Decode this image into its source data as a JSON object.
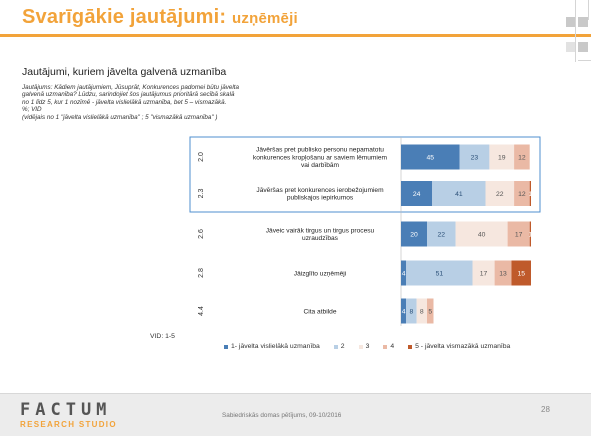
{
  "header": {
    "title_main": "Svarīgākie jautājumi:",
    "title_sub": "uzņēmēji"
  },
  "subtitle": "Jautājumi, kuriem jāvelta galvenā uzmanība",
  "question_lines": [
    "Jautājums: Kādiem jautājumiem, Jūsuprāt, Konkurences padomei būtu jāvelta",
    "galvenā uzmanība? Lūdzu, sarindojiet šos jautājumus prioritārā secībā skalā",
    "no 1 līdz 5, kur 1 nozīmē - jāvelta vislielākā uzmanība, bet 5 – vismazākā.",
    "%; VID",
    "(vidējais no 1 \"jāvelta vislielākā uzmanība\" ; 5 \"vismazākā uzmanība\" )"
  ],
  "vid_label": "VID: 1-5",
  "footer": {
    "logo_top": "FACTUM",
    "logo_bottom": "RESEARCH STUDIO",
    "source": "Sabiedriskās domas pētījums, 09-10/2016",
    "page_number": "28"
  },
  "colors": {
    "c1": "#4a7eb6",
    "c2": "#b8cfe5",
    "c3": "#f6e7df",
    "c4": "#eab9a5",
    "c5": "#bf5a2b",
    "title": "#f2a33a",
    "highlight_border": "#4f8fcf"
  },
  "chart_data": {
    "type": "bar",
    "orientation": "horizontal",
    "stacked": true,
    "categories": [
      [
        "Jāvēršas pret publisko personu nepamatotu",
        "konkurences kropļošanu ar saviem lēmumiem",
        "vai darbībām"
      ],
      [
        "Jāvēršas pret konkurences ierobežojumiem",
        "publiskajos iepirkumos"
      ],
      [
        "Jāveic vairāk tirgus un tirgus procesu",
        "uzraudzības"
      ],
      [
        "Jāizglīto uzņēmēji"
      ],
      [
        "Cita atbilde"
      ]
    ],
    "means": [
      "2.0",
      "2.3",
      "2.6",
      "2.8",
      "4.4"
    ],
    "series": [
      {
        "name": "1- jāvelta vislielākā uzmanība",
        "values": [
          45,
          24,
          20,
          4,
          4
        ]
      },
      {
        "name": "2",
        "values": [
          23,
          41,
          22,
          51,
          8
        ]
      },
      {
        "name": "3",
        "values": [
          19,
          22,
          40,
          17,
          8
        ]
      },
      {
        "name": "4",
        "values": [
          12,
          12,
          17,
          13,
          5
        ]
      },
      {
        "name": "5 - jāvelta vismazākā uzmanība",
        "values": [
          0,
          1,
          1,
          15,
          0
        ]
      }
    ],
    "value_labels": [
      [
        "45",
        "23",
        "19",
        "12",
        ""
      ],
      [
        "24",
        "41",
        "22",
        "12",
        "1"
      ],
      [
        "20",
        "22",
        "40",
        "17",
        "1"
      ],
      [
        "4",
        "51",
        "17",
        "13",
        "15"
      ],
      [
        "4",
        "8",
        "8",
        "5",
        ""
      ]
    ],
    "xlim": [
      0,
      100
    ],
    "highlighted_rows": [
      0,
      1
    ],
    "legend_position": "bottom"
  }
}
